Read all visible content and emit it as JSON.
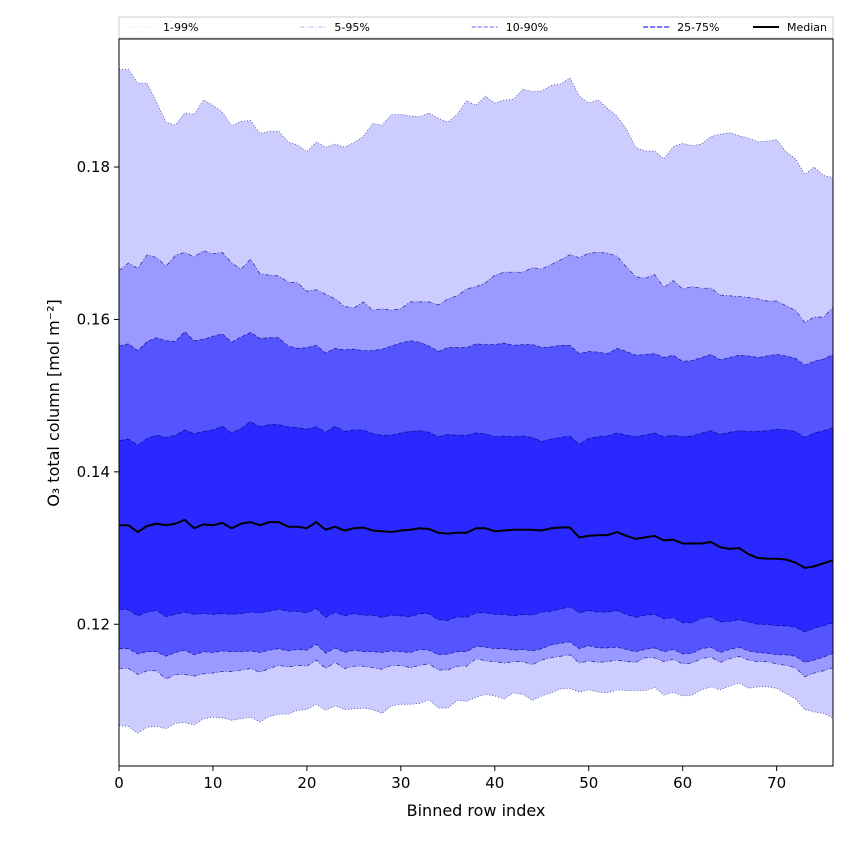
{
  "chart_data": {
    "type": "area",
    "title": "",
    "xlabel": "Binned row index",
    "ylabel": "O₃ total column [mol m⁻²]",
    "xlim": [
      0,
      76
    ],
    "ylim": [
      0.1014,
      0.1968
    ],
    "x_ticks": [
      0,
      10,
      20,
      30,
      40,
      50,
      60,
      70
    ],
    "y_ticks": [
      0.12,
      0.14,
      0.16,
      0.18
    ],
    "y_tick_labels": [
      "0.12",
      "0.14",
      "0.16",
      "0.18"
    ],
    "grid": false,
    "legend_placement": "top",
    "legend": [
      {
        "label": "1-99%",
        "color": "#ccccff",
        "style": "dotted"
      },
      {
        "label": "5-95%",
        "color": "#9999ff",
        "style": "dashdot"
      },
      {
        "label": "10-90%",
        "color": "#8080ff",
        "style": "dashed"
      },
      {
        "label": "25-75%",
        "color": "#4d4dff",
        "style": "dashed"
      },
      {
        "label": "Median",
        "color": "#000000",
        "style": "solid"
      }
    ],
    "x": [
      0,
      1,
      2,
      3,
      4,
      5,
      6,
      7,
      8,
      9,
      10,
      11,
      12,
      13,
      14,
      15,
      16,
      17,
      18,
      19,
      20,
      21,
      22,
      23,
      24,
      25,
      26,
      27,
      28,
      29,
      30,
      31,
      32,
      33,
      34,
      35,
      36,
      37,
      38,
      39,
      40,
      41,
      42,
      43,
      44,
      45,
      46,
      47,
      48,
      49,
      50,
      51,
      52,
      53,
      54,
      55,
      56,
      57,
      58,
      59,
      60,
      61,
      62,
      63,
      64,
      65,
      66,
      67,
      68,
      69,
      70,
      71,
      72,
      73,
      74,
      75,
      76
    ],
    "bands": [
      {
        "name": "1-99%",
        "fill": "#ccccff",
        "lower": [
          0.1067,
          0.1066,
          0.1057,
          0.1065,
          0.1066,
          0.1063,
          0.107,
          0.1071,
          0.1068,
          0.1076,
          0.1078,
          0.1077,
          0.1074,
          0.1076,
          0.1078,
          0.1072,
          0.1079,
          0.1082,
          0.1082,
          0.1087,
          0.1088,
          0.1095,
          0.1087,
          0.1093,
          0.1088,
          0.1089,
          0.109,
          0.1088,
          0.1083,
          0.1093,
          0.1095,
          0.1095,
          0.1096,
          0.1101,
          0.109,
          0.109,
          0.11,
          0.1099,
          0.1104,
          0.1108,
          0.1106,
          0.1102,
          0.111,
          0.1108,
          0.11,
          0.1106,
          0.111,
          0.1115,
          0.1116,
          0.1111,
          0.1114,
          0.1111,
          0.111,
          0.1114,
          0.1113,
          0.1113,
          0.1113,
          0.1117,
          0.1107,
          0.1111,
          0.1106,
          0.1107,
          0.1114,
          0.1118,
          0.1114,
          0.1119,
          0.1123,
          0.1116,
          0.1118,
          0.1118,
          0.1116,
          0.1109,
          0.1102,
          0.1088,
          0.1085,
          0.1083,
          0.1077
        ],
        "upper": [
          0.1928,
          0.1928,
          0.191,
          0.191,
          0.1885,
          0.1859,
          0.1855,
          0.1871,
          0.1869,
          0.1888,
          0.1881,
          0.1872,
          0.1854,
          0.186,
          0.1861,
          0.1844,
          0.1847,
          0.1847,
          0.1833,
          0.1829,
          0.182,
          0.1833,
          0.1826,
          0.183,
          0.1826,
          0.1832,
          0.184,
          0.1857,
          0.1855,
          0.1869,
          0.1869,
          0.1867,
          0.1866,
          0.1871,
          0.1864,
          0.1859,
          0.1869,
          0.1887,
          0.1881,
          0.1893,
          0.1884,
          0.1888,
          0.1889,
          0.1902,
          0.1899,
          0.19,
          0.1907,
          0.1909,
          0.1917,
          0.1893,
          0.1884,
          0.1888,
          0.1877,
          0.1867,
          0.185,
          0.1826,
          0.1821,
          0.1821,
          0.1811,
          0.1827,
          0.1831,
          0.1828,
          0.183,
          0.184,
          0.1843,
          0.1845,
          0.1841,
          0.1838,
          0.1833,
          0.1834,
          0.1836,
          0.182,
          0.1811,
          0.179,
          0.18,
          0.1789,
          0.1786
        ]
      },
      {
        "name": "5-95%",
        "fill": "#9999ff",
        "lower": [
          0.1142,
          0.1142,
          0.1134,
          0.1139,
          0.1139,
          0.1128,
          0.1134,
          0.1134,
          0.1132,
          0.1135,
          0.1136,
          0.1138,
          0.1138,
          0.114,
          0.1142,
          0.1137,
          0.1142,
          0.1146,
          0.1144,
          0.1146,
          0.1145,
          0.1153,
          0.1142,
          0.115,
          0.1142,
          0.1145,
          0.1145,
          0.1143,
          0.1141,
          0.1146,
          0.1146,
          0.1143,
          0.1146,
          0.1148,
          0.114,
          0.114,
          0.1145,
          0.1145,
          0.1155,
          0.1152,
          0.1151,
          0.1149,
          0.1151,
          0.1151,
          0.1147,
          0.1153,
          0.1156,
          0.1158,
          0.116,
          0.1149,
          0.1152,
          0.115,
          0.1151,
          0.1153,
          0.1151,
          0.115,
          0.1156,
          0.1156,
          0.1151,
          0.1154,
          0.1148,
          0.1149,
          0.1155,
          0.1157,
          0.115,
          0.1155,
          0.1158,
          0.1153,
          0.1151,
          0.1151,
          0.1148,
          0.1146,
          0.1143,
          0.1131,
          0.1136,
          0.1139,
          0.1143
        ],
        "upper": [
          0.1664,
          0.1674,
          0.1667,
          0.1685,
          0.1681,
          0.167,
          0.1684,
          0.1688,
          0.1682,
          0.169,
          0.1686,
          0.1688,
          0.1674,
          0.1666,
          0.1679,
          0.166,
          0.1658,
          0.1657,
          0.1649,
          0.1648,
          0.1637,
          0.1639,
          0.1633,
          0.1627,
          0.1617,
          0.1615,
          0.1623,
          0.1612,
          0.1614,
          0.1612,
          0.1614,
          0.1623,
          0.1623,
          0.1623,
          0.1619,
          0.1627,
          0.1631,
          0.164,
          0.1643,
          0.1648,
          0.1658,
          0.1662,
          0.1662,
          0.1662,
          0.1668,
          0.1666,
          0.1672,
          0.1678,
          0.1685,
          0.1681,
          0.1687,
          0.1688,
          0.1687,
          0.1683,
          0.1669,
          0.1656,
          0.1654,
          0.1659,
          0.1642,
          0.1651,
          0.164,
          0.1643,
          0.1641,
          0.1641,
          0.1632,
          0.1631,
          0.163,
          0.1629,
          0.1627,
          0.1624,
          0.1624,
          0.1618,
          0.1612,
          0.1596,
          0.1603,
          0.1603,
          0.1616
        ]
      },
      {
        "name": "10-90%",
        "fill": "#5555ff",
        "lower": [
          0.1168,
          0.1168,
          0.1161,
          0.1164,
          0.1164,
          0.1158,
          0.1163,
          0.1166,
          0.116,
          0.1164,
          0.1163,
          0.1165,
          0.1164,
          0.1164,
          0.1165,
          0.1163,
          0.1166,
          0.1168,
          0.1165,
          0.1167,
          0.1166,
          0.1174,
          0.1162,
          0.1169,
          0.1163,
          0.1166,
          0.1164,
          0.1164,
          0.1163,
          0.1165,
          0.1164,
          0.1163,
          0.1167,
          0.1166,
          0.116,
          0.1161,
          0.1164,
          0.1164,
          0.1171,
          0.117,
          0.1168,
          0.1168,
          0.1166,
          0.1167,
          0.1165,
          0.1168,
          0.1173,
          0.1175,
          0.1177,
          0.1168,
          0.1172,
          0.1169,
          0.1169,
          0.117,
          0.1167,
          0.1164,
          0.1167,
          0.1169,
          0.1164,
          0.1167,
          0.1161,
          0.1162,
          0.1168,
          0.117,
          0.1163,
          0.1167,
          0.117,
          0.1165,
          0.1163,
          0.1162,
          0.116,
          0.116,
          0.1158,
          0.115,
          0.1153,
          0.1157,
          0.1162
        ],
        "upper": [
          0.1565,
          0.1568,
          0.1559,
          0.1571,
          0.1576,
          0.1572,
          0.1571,
          0.1584,
          0.1572,
          0.1574,
          0.1578,
          0.1581,
          0.157,
          0.1577,
          0.1583,
          0.1575,
          0.1576,
          0.1576,
          0.1565,
          0.1562,
          0.1563,
          0.1566,
          0.1556,
          0.1562,
          0.156,
          0.1561,
          0.1559,
          0.1559,
          0.1561,
          0.1565,
          0.1569,
          0.1572,
          0.157,
          0.1565,
          0.1558,
          0.1563,
          0.1563,
          0.1563,
          0.1568,
          0.1567,
          0.1567,
          0.1569,
          0.1566,
          0.1567,
          0.1567,
          0.1563,
          0.1564,
          0.1566,
          0.1566,
          0.1555,
          0.1558,
          0.1557,
          0.1555,
          0.1562,
          0.1558,
          0.1553,
          0.1554,
          0.1555,
          0.155,
          0.1553,
          0.1545,
          0.1546,
          0.155,
          0.1554,
          0.1547,
          0.155,
          0.1553,
          0.1552,
          0.155,
          0.1552,
          0.1554,
          0.1552,
          0.1549,
          0.154,
          0.1545,
          0.1548,
          0.1554
        ]
      },
      {
        "name": "25-75%",
        "fill": "#2828ff",
        "lower": [
          0.122,
          0.1219,
          0.1211,
          0.1216,
          0.1218,
          0.121,
          0.1213,
          0.1216,
          0.1213,
          0.1214,
          0.1213,
          0.1214,
          0.1213,
          0.1214,
          0.1216,
          0.1215,
          0.1217,
          0.122,
          0.1217,
          0.1217,
          0.1215,
          0.1221,
          0.1209,
          0.1216,
          0.1211,
          0.1214,
          0.1212,
          0.1212,
          0.1209,
          0.1212,
          0.1211,
          0.121,
          0.1214,
          0.1214,
          0.1206,
          0.1205,
          0.121,
          0.1209,
          0.1215,
          0.1215,
          0.1213,
          0.1213,
          0.1211,
          0.1213,
          0.1212,
          0.1216,
          0.1217,
          0.122,
          0.1223,
          0.1215,
          0.1218,
          0.1216,
          0.1216,
          0.1218,
          0.1213,
          0.1209,
          0.1212,
          0.1213,
          0.1207,
          0.1209,
          0.1202,
          0.1202,
          0.1208,
          0.121,
          0.1203,
          0.1204,
          0.1206,
          0.1203,
          0.12,
          0.12,
          0.1198,
          0.1198,
          0.1196,
          0.119,
          0.1195,
          0.1198,
          0.1202
        ],
        "upper": [
          0.1441,
          0.1443,
          0.1435,
          0.1444,
          0.1448,
          0.1445,
          0.1448,
          0.1455,
          0.145,
          0.1453,
          0.1455,
          0.146,
          0.1451,
          0.1457,
          0.1466,
          0.1459,
          0.1462,
          0.1462,
          0.1459,
          0.1458,
          0.1456,
          0.1459,
          0.1452,
          0.146,
          0.1453,
          0.1455,
          0.1455,
          0.145,
          0.1448,
          0.1448,
          0.1451,
          0.1453,
          0.1454,
          0.1452,
          0.1446,
          0.1449,
          0.1448,
          0.1448,
          0.1451,
          0.145,
          0.1446,
          0.1447,
          0.1446,
          0.1447,
          0.1445,
          0.144,
          0.1443,
          0.1445,
          0.1447,
          0.1436,
          0.1444,
          0.1446,
          0.1447,
          0.1451,
          0.1448,
          0.1446,
          0.1448,
          0.1451,
          0.1446,
          0.1448,
          0.1446,
          0.1447,
          0.1451,
          0.1454,
          0.1449,
          0.1452,
          0.1454,
          0.1453,
          0.1453,
          0.1454,
          0.1456,
          0.1455,
          0.1453,
          0.1445,
          0.1451,
          0.1454,
          0.1458
        ]
      }
    ],
    "series": [
      {
        "name": "Median",
        "color": "#000000",
        "values": [
          0.133,
          0.133,
          0.1321,
          0.1329,
          0.1332,
          0.133,
          0.1332,
          0.1337,
          0.1326,
          0.1331,
          0.133,
          0.1333,
          0.1326,
          0.1332,
          0.1334,
          0.133,
          0.1334,
          0.1334,
          0.1328,
          0.1328,
          0.1326,
          0.1334,
          0.1324,
          0.1328,
          0.1323,
          0.1326,
          0.1327,
          0.1323,
          0.1322,
          0.1321,
          0.1323,
          0.1324,
          0.1326,
          0.1325,
          0.132,
          0.1319,
          0.132,
          0.132,
          0.1326,
          0.1326,
          0.1322,
          0.1323,
          0.1324,
          0.1324,
          0.1324,
          0.1323,
          0.1326,
          0.1327,
          0.1327,
          0.1314,
          0.1316,
          0.1317,
          0.1317,
          0.1321,
          0.1316,
          0.1312,
          0.1314,
          0.1316,
          0.131,
          0.1311,
          0.1306,
          0.1306,
          0.1306,
          0.1308,
          0.1301,
          0.1299,
          0.13,
          0.1292,
          0.1287,
          0.1286,
          0.1286,
          0.1285,
          0.1281,
          0.1274,
          0.1276,
          0.128,
          0.1284
        ]
      }
    ]
  }
}
